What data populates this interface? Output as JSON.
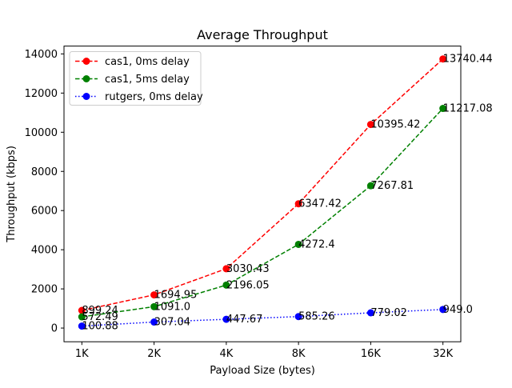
{
  "chart_data": {
    "type": "line",
    "title": "Average Throughput",
    "xlabel": "Payload Size (bytes)",
    "ylabel": "Throughput (kbps)",
    "categories": [
      "1K",
      "2K",
      "4K",
      "8K",
      "16K",
      "32K"
    ],
    "ylim": [
      -700,
      14400
    ],
    "yticks": [
      0,
      2000,
      4000,
      6000,
      8000,
      10000,
      12000,
      14000
    ],
    "grid": false,
    "legend_position": "upper-left",
    "series": [
      {
        "name": "cas1, 0ms delay",
        "color": "#ff0000",
        "line_style": "dashed",
        "values": [
          899.24,
          1694.95,
          3030.43,
          6347.42,
          10395.42,
          13740.44
        ],
        "labels": [
          "899.24",
          "1694.95",
          "3030.43",
          "6347.42",
          "10395.42",
          "13740.44"
        ]
      },
      {
        "name": "cas1, 5ms delay",
        "color": "#008000",
        "line_style": "dashed",
        "values": [
          572.49,
          1091.0,
          2196.05,
          4272.4,
          7267.81,
          11217.08
        ],
        "labels": [
          "572.49",
          "1091.0",
          "2196.05",
          "4272.4",
          "7267.81",
          "11217.08"
        ]
      },
      {
        "name": "rutgers, 0ms delay",
        "color": "#0000ff",
        "line_style": "dotted",
        "values": [
          100.88,
          307.04,
          447.67,
          585.26,
          779.02,
          949.0
        ],
        "labels": [
          "100.88",
          "307.04",
          "447.67",
          "585.26",
          "779.02",
          "949.0"
        ]
      }
    ]
  }
}
